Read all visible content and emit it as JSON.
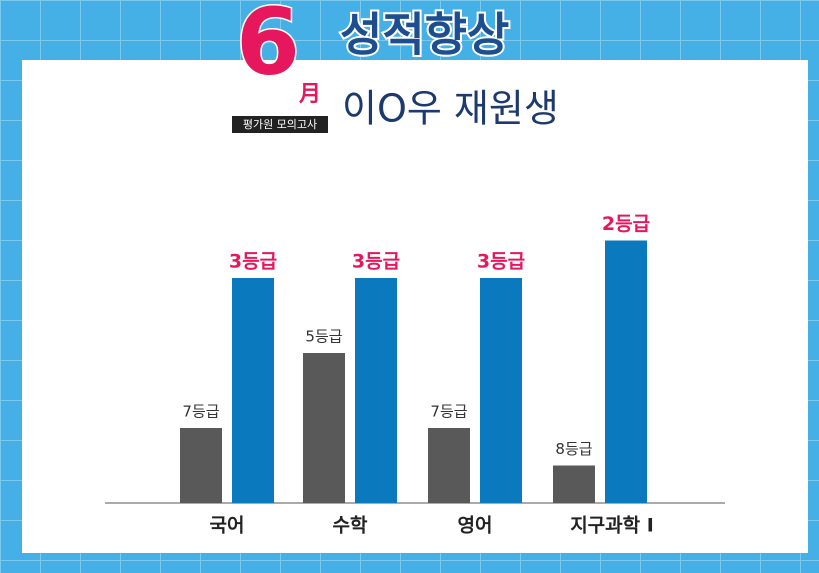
{
  "header": {
    "month_number": "6",
    "month_char": "月",
    "exam": "평가원 모의고사",
    "title": "성적향상",
    "student": "이O우 재원생"
  },
  "chart_data": {
    "type": "bar",
    "categories": [
      "국어",
      "수학",
      "영어",
      "지구과학 I"
    ],
    "series": [
      {
        "color": "#595959",
        "values": [
          7,
          5,
          7,
          8
        ],
        "value_labels": [
          "7등급",
          "5등급",
          "7등급",
          "8등급"
        ]
      },
      {
        "color": "#0a79bd",
        "values": [
          3,
          3,
          3,
          2
        ],
        "value_labels": [
          "3등급",
          "3등급",
          "3등급",
          "2등급"
        ]
      }
    ],
    "ylim": [
      9,
      1
    ]
  }
}
